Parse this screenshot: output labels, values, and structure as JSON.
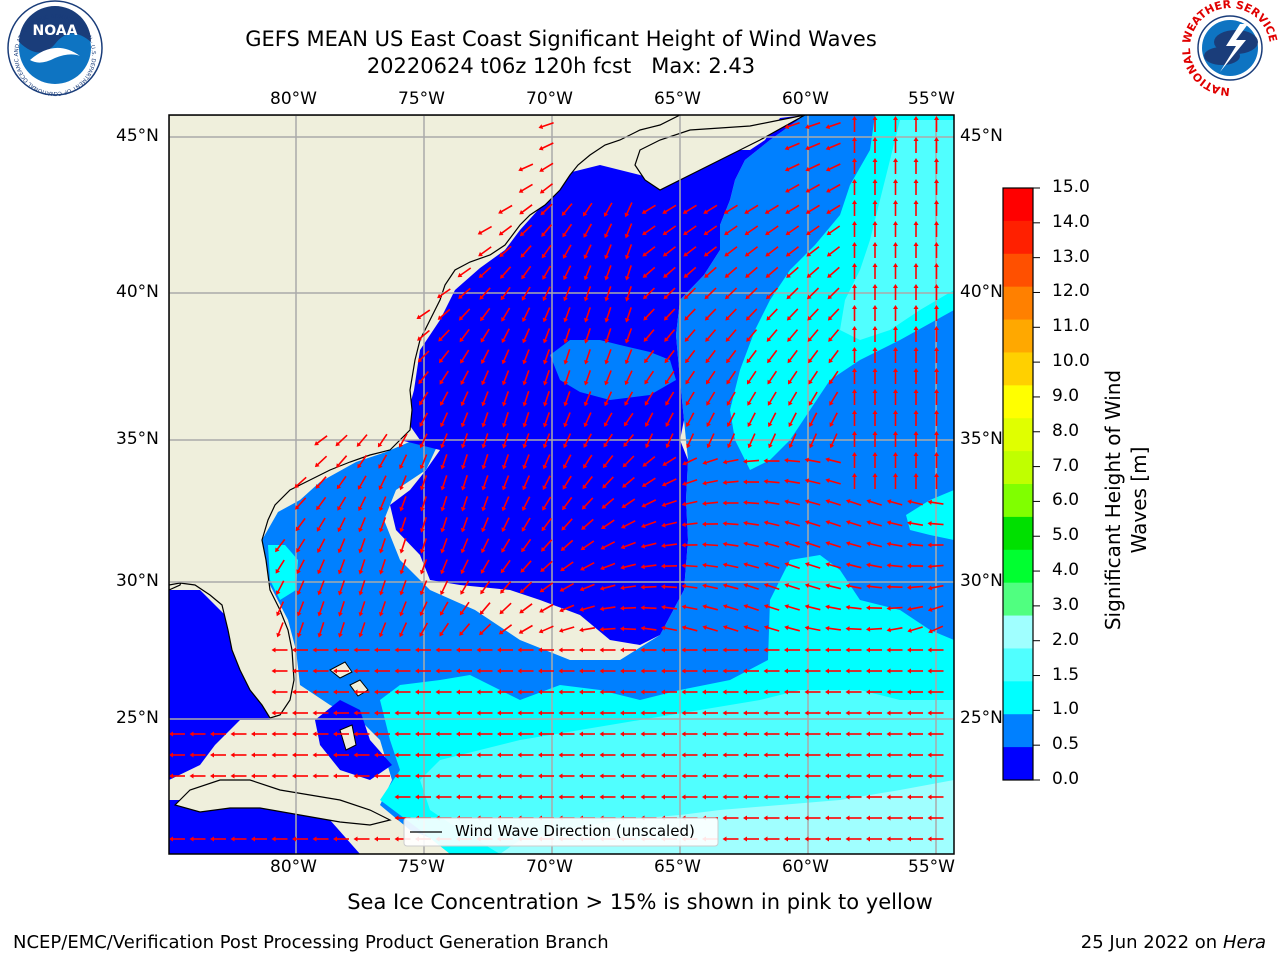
{
  "header": {
    "title_line1": "GEFS MEAN US East Coast Significant Height of Wind Waves",
    "title_line2": "20220624 t06z 120h fcst   Max: 2.43"
  },
  "logos": {
    "noaa_text": "NOAA",
    "noaa_ring": "NATIONAL OCEANIC AND ATMOSPHERIC ADMINISTRATION · U.S. DEPARTMENT OF COMMERCE",
    "nws_ring": "NATIONAL WEATHER SERVICE"
  },
  "map": {
    "lon_labels": [
      "80°W",
      "75°W",
      "70°W",
      "65°W",
      "60°W",
      "55°W"
    ],
    "lat_labels": [
      "45°N",
      "40°N",
      "35°N",
      "30°N",
      "25°N"
    ],
    "legend_label": "Wind Wave Direction (unscaled)"
  },
  "colorbar": {
    "label_line1": "Significant Height of Wind",
    "label_line2": "Waves [m]",
    "ticks": [
      "15.0",
      "14.0",
      "13.0",
      "12.0",
      "11.0",
      "10.0",
      "9.0",
      "8.0",
      "7.0",
      "6.0",
      "5.0",
      "4.0",
      "3.0",
      "2.0",
      "1.5",
      "1.0",
      "0.5",
      "0.0"
    ],
    "colors": [
      "#ff0000",
      "#ff2000",
      "#ff5000",
      "#ff8000",
      "#ffa800",
      "#ffd000",
      "#ffff00",
      "#e0ff00",
      "#c0ff00",
      "#80ff00",
      "#00e000",
      "#00ff30",
      "#50ff80",
      "#a0ffff",
      "#50ffff",
      "#00ffff",
      "#0080ff",
      "#0000ff"
    ]
  },
  "colors": {
    "land": "#efefdc",
    "sea_0": "#0000ff",
    "sea_05": "#0080ff",
    "sea_10": "#00ffff",
    "sea_15": "#50ffff",
    "sea_20": "#a0ffff",
    "arrow": "#ff0000",
    "grid": "#aaaaaa"
  },
  "footer": {
    "sea_ice_note": "Sea Ice Concentration > 15% is shown in pink to yellow",
    "branch": "NCEP/EMC/Verification Post Processing Product Generation Branch",
    "date": "25 Jun 2022 on",
    "machine": "Hera"
  }
}
